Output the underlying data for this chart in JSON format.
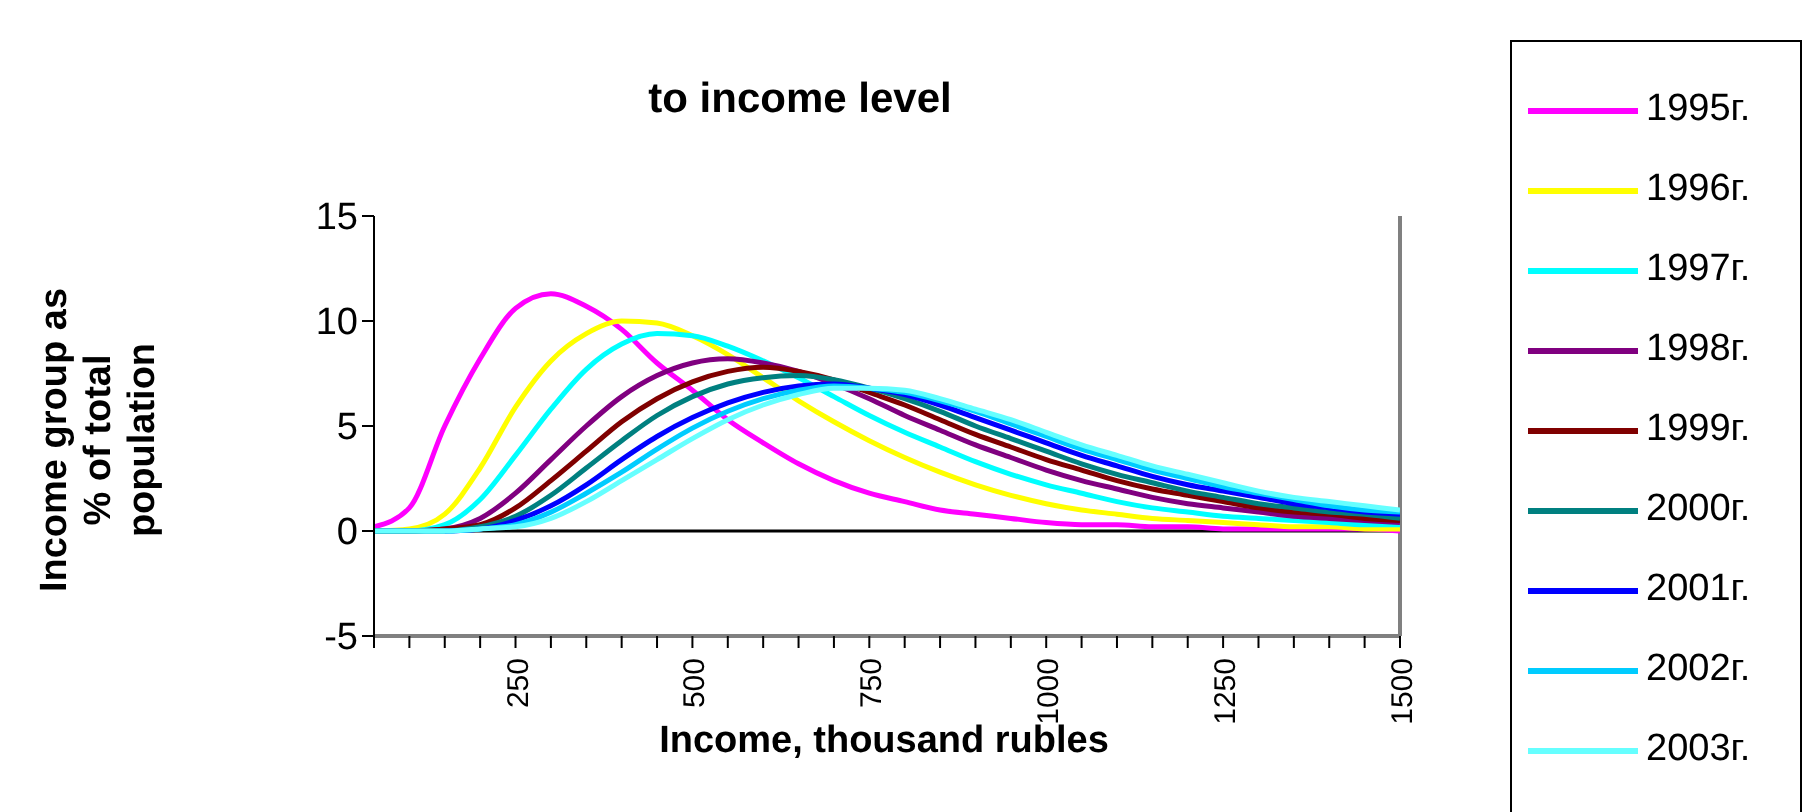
{
  "chart_data": {
    "type": "line",
    "title": "to income level",
    "xlabel": "Income, thousand rubles",
    "ylabel": "Income group as\n% of total\npopulation",
    "x": [
      50,
      100,
      150,
      200,
      250,
      300,
      350,
      400,
      450,
      500,
      550,
      600,
      650,
      700,
      750,
      800,
      850,
      900,
      950,
      1000,
      1050,
      1100,
      1150,
      1200,
      1250,
      1300,
      1350,
      1400,
      1450,
      1500
    ],
    "xlim": [
      50,
      1500
    ],
    "xticks": [
      {
        "value": 50,
        "label": null
      },
      {
        "value": 100,
        "label": null
      },
      {
        "value": 150,
        "label": null
      },
      {
        "value": 200,
        "label": null
      },
      250,
      {
        "value": 300,
        "label": null
      },
      {
        "value": 350,
        "label": null
      },
      {
        "value": 400,
        "label": null
      },
      {
        "value": 450,
        "label": null
      },
      500,
      {
        "value": 550,
        "label": null
      },
      {
        "value": 600,
        "label": null
      },
      {
        "value": 650,
        "label": null
      },
      {
        "value": 700,
        "label": null
      },
      750,
      {
        "value": 800,
        "label": null
      },
      {
        "value": 850,
        "label": null
      },
      {
        "value": 900,
        "label": null
      },
      {
        "value": 950,
        "label": null
      },
      1000,
      {
        "value": 1050,
        "label": null
      },
      {
        "value": 1100,
        "label": null
      },
      {
        "value": 1150,
        "label": null
      },
      {
        "value": 1200,
        "label": null
      },
      1250,
      {
        "value": 1300,
        "label": null
      },
      {
        "value": 1350,
        "label": null
      },
      {
        "value": 1400,
        "label": null
      },
      {
        "value": 1450,
        "label": null
      },
      1500
    ],
    "ref_lines": [
      {
        "axis": "y",
        "value": 0,
        "color": "#000000"
      }
    ],
    "ylim": [
      -5,
      15
    ],
    "yticks": [
      -5,
      0,
      5,
      10,
      15
    ],
    "grid": false,
    "legend": "right",
    "marker": "none",
    "line_style": "solid",
    "series": [
      {
        "name": "1995г.",
        "color": "#ff00ff",
        "values": [
          0.2,
          1.1,
          5.0,
          8.2,
          10.6,
          11.3,
          10.7,
          9.6,
          8.0,
          6.7,
          5.3,
          4.2,
          3.2,
          2.4,
          1.8,
          1.4,
          1.0,
          0.8,
          0.6,
          0.4,
          0.3,
          0.3,
          0.2,
          0.2,
          0.1,
          0.1,
          0.1,
          0.1,
          0.1,
          0.0
        ]
      },
      {
        "name": "1996г.",
        "color": "#ffff00",
        "values": [
          0,
          0.1,
          0.8,
          3.0,
          5.9,
          8.1,
          9.4,
          10.0,
          9.9,
          9.3,
          8.4,
          7.3,
          6.2,
          5.2,
          4.3,
          3.5,
          2.8,
          2.2,
          1.7,
          1.3,
          1.0,
          0.8,
          0.6,
          0.5,
          0.4,
          0.3,
          0.2,
          0.2,
          0.1,
          0.1
        ]
      },
      {
        "name": "1997г.",
        "color": "#00ffff",
        "values": [
          0,
          0,
          0.3,
          1.5,
          3.6,
          5.8,
          7.7,
          8.9,
          9.4,
          9.3,
          8.8,
          8.1,
          7.3,
          6.4,
          5.5,
          4.7,
          4.0,
          3.3,
          2.7,
          2.2,
          1.8,
          1.4,
          1.1,
          0.9,
          0.7,
          0.6,
          0.5,
          0.4,
          0.3,
          0.3
        ]
      },
      {
        "name": "1998г.",
        "color": "#800080",
        "values": [
          0,
          0,
          0.1,
          0.6,
          1.8,
          3.4,
          5.0,
          6.4,
          7.4,
          8.0,
          8.2,
          8.0,
          7.6,
          7.0,
          6.3,
          5.5,
          4.8,
          4.1,
          3.5,
          2.9,
          2.4,
          2.0,
          1.6,
          1.3,
          1.1,
          0.9,
          0.7,
          0.6,
          0.5,
          0.4
        ]
      },
      {
        "name": "1999г.",
        "color": "#800000",
        "values": [
          0,
          0,
          0.1,
          0.3,
          1.1,
          2.4,
          3.8,
          5.2,
          6.3,
          7.1,
          7.6,
          7.8,
          7.6,
          7.2,
          6.6,
          6.0,
          5.3,
          4.6,
          4.0,
          3.4,
          2.9,
          2.4,
          2.0,
          1.7,
          1.4,
          1.1,
          0.9,
          0.8,
          0.6,
          0.5
        ]
      },
      {
        "name": "2000г.",
        "color": "#008080",
        "values": [
          0,
          0,
          0,
          0.2,
          0.7,
          1.7,
          3.0,
          4.3,
          5.5,
          6.4,
          7.0,
          7.3,
          7.4,
          7.2,
          6.8,
          6.3,
          5.7,
          5.0,
          4.4,
          3.8,
          3.2,
          2.7,
          2.3,
          1.9,
          1.6,
          1.3,
          1.1,
          0.9,
          0.8,
          0.6
        ]
      },
      {
        "name": "2001г.",
        "color": "#0000ff",
        "values": [
          null,
          null,
          0,
          0.1,
          0.5,
          1.2,
          2.2,
          3.4,
          4.5,
          5.4,
          6.1,
          6.6,
          6.9,
          7.0,
          6.8,
          6.5,
          6.0,
          5.4,
          4.8,
          4.2,
          3.6,
          3.1,
          2.6,
          2.2,
          1.9,
          1.6,
          1.3,
          1.1,
          0.9,
          0.8
        ]
      },
      {
        "name": "2002г.",
        "color": "#00ccff",
        "values": [
          0,
          0,
          0,
          0.1,
          0.3,
          0.9,
          1.8,
          2.8,
          3.9,
          4.9,
          5.7,
          6.3,
          6.7,
          6.9,
          6.8,
          6.6,
          6.2,
          5.7,
          5.1,
          4.5,
          3.9,
          3.4,
          2.9,
          2.5,
          2.1,
          1.8,
          1.5,
          1.2,
          1.0,
          0.9
        ]
      },
      {
        "name": "2003г.",
        "color": "#66ffff",
        "values": [
          0,
          0,
          0,
          0.1,
          0.2,
          0.6,
          1.4,
          2.4,
          3.4,
          4.4,
          5.3,
          6.0,
          6.5,
          6.8,
          6.8,
          6.7,
          6.3,
          5.8,
          5.3,
          4.7,
          4.1,
          3.6,
          3.1,
          2.7,
          2.3,
          1.9,
          1.6,
          1.4,
          1.2,
          1.0
        ]
      }
    ]
  }
}
